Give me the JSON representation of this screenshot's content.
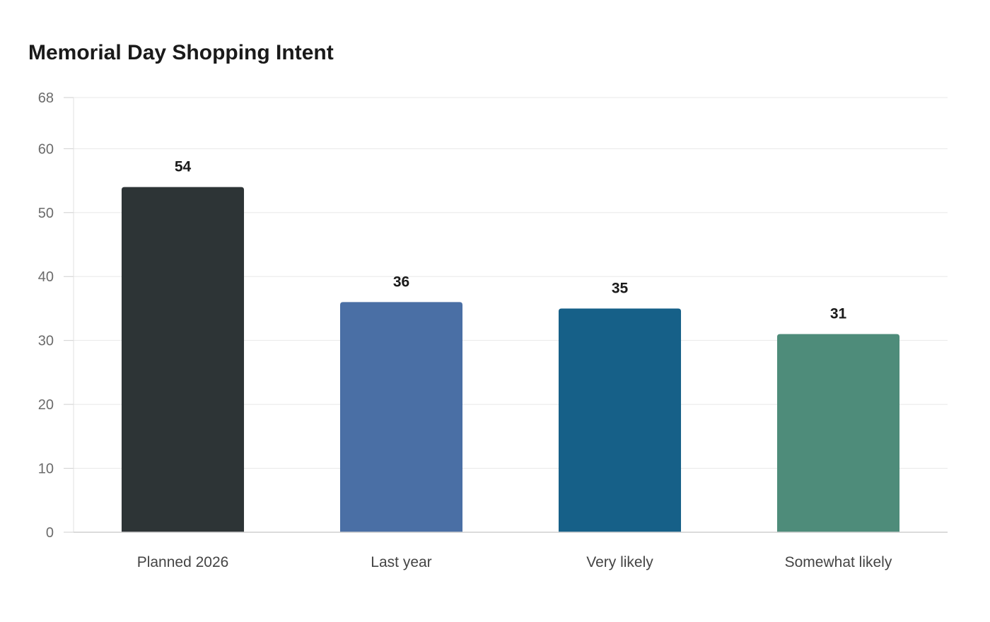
{
  "chart_data": {
    "type": "bar",
    "title": "Memorial Day Shopping Intent",
    "xlabel": "",
    "ylabel": "",
    "categories": [
      "Planned 2026",
      "Last year",
      "Very likely",
      "Somewhat likely"
    ],
    "values": [
      54,
      36,
      35,
      31
    ],
    "colors": [
      "#2d3436",
      "#4a6fa5",
      "#166088",
      "#4e8c7a"
    ],
    "ylim": [
      0,
      68
    ],
    "yticks": [
      0,
      10,
      20,
      30,
      40,
      50,
      60,
      68
    ],
    "grid": true,
    "legend": "none",
    "data_labels": true
  }
}
